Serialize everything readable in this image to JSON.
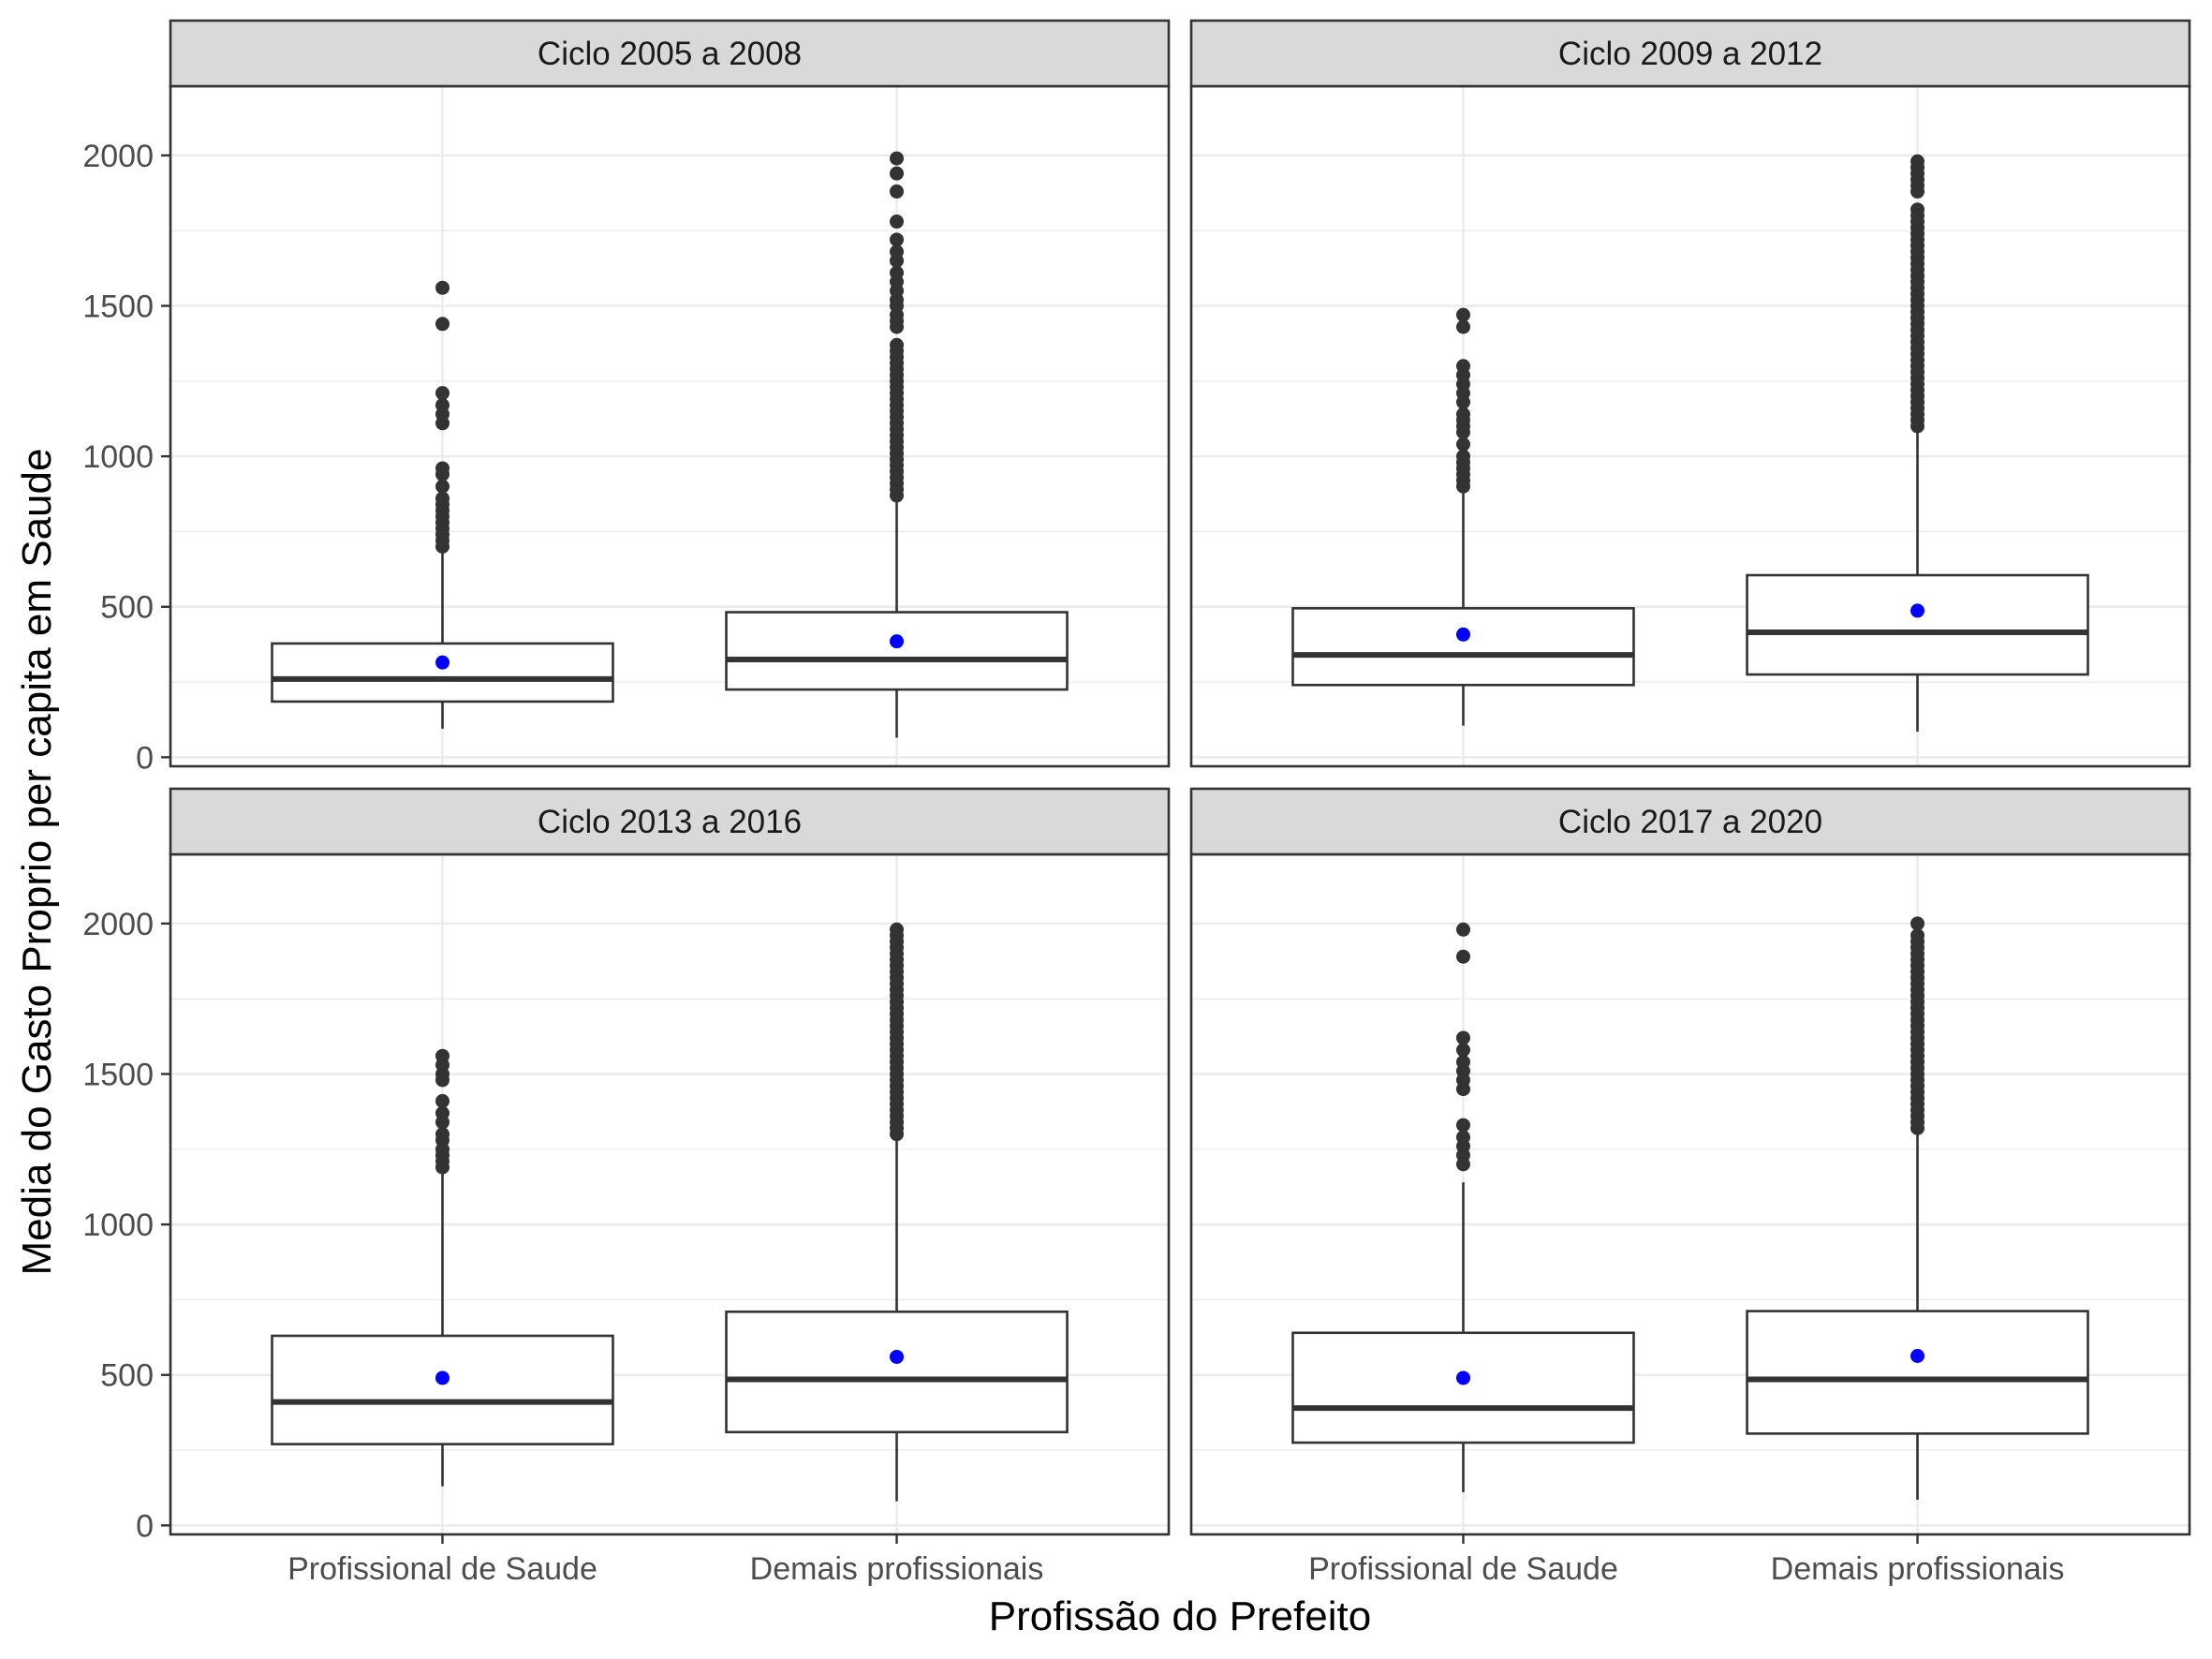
{
  "chart_data": {
    "type": "boxplot",
    "xlabel": "Profissão do Prefeito",
    "ylabel": "Media do Gasto Proprio per capita em Saude",
    "ylim": [
      -30,
      2230
    ],
    "yticks": [
      0,
      500,
      1000,
      1500,
      2000
    ],
    "categories": [
      "Profissional de Saude",
      "Demais profissionais"
    ],
    "colors": {
      "mean_point": "#0000ff",
      "outlier": "#333333",
      "box": "#333333",
      "strip_fill": "#d9d9d9",
      "grid": "#ebebeb"
    },
    "grid": true,
    "panels": [
      {
        "title": "Ciclo 2005 a 2008",
        "boxes": [
          {
            "category": "Profissional de Saude",
            "whisker_low": 95,
            "q1": 185,
            "median": 260,
            "q3": 378,
            "whisker_high": 680,
            "mean": 315,
            "outliers": [
              700,
              720,
              740,
              760,
              780,
              800,
              820,
              840,
              860,
              900,
              940,
              960,
              1110,
              1140,
              1170,
              1210,
              1440,
              1560
            ]
          },
          {
            "category": "Demais profissionais",
            "whisker_low": 65,
            "q1": 225,
            "median": 325,
            "q3": 482,
            "whisker_high": 860,
            "mean": 385,
            "outliers": [
              870,
              890,
              910,
              930,
              950,
              970,
              990,
              1010,
              1030,
              1050,
              1070,
              1090,
              1110,
              1130,
              1150,
              1170,
              1190,
              1210,
              1230,
              1250,
              1270,
              1290,
              1310,
              1330,
              1350,
              1370,
              1430,
              1450,
              1470,
              1500,
              1520,
              1550,
              1580,
              1610,
              1650,
              1680,
              1720,
              1780,
              1880,
              1940,
              1990
            ]
          }
        ]
      },
      {
        "title": "Ciclo 2009 a 2012",
        "boxes": [
          {
            "category": "Profissional de Saude",
            "whisker_low": 105,
            "q1": 240,
            "median": 340,
            "q3": 495,
            "whisker_high": 880,
            "mean": 408,
            "outliers": [
              900,
              920,
              940,
              960,
              980,
              1000,
              1040,
              1080,
              1100,
              1120,
              1140,
              1180,
              1210,
              1240,
              1270,
              1300,
              1430,
              1470
            ]
          },
          {
            "category": "Demais profissionais",
            "whisker_low": 85,
            "q1": 275,
            "median": 415,
            "q3": 605,
            "whisker_high": 1090,
            "mean": 487,
            "outliers": [
              1100,
              1120,
              1140,
              1160,
              1180,
              1200,
              1220,
              1240,
              1260,
              1280,
              1300,
              1320,
              1340,
              1360,
              1380,
              1400,
              1420,
              1440,
              1460,
              1480,
              1500,
              1520,
              1540,
              1560,
              1580,
              1600,
              1620,
              1640,
              1660,
              1680,
              1700,
              1720,
              1740,
              1760,
              1780,
              1800,
              1820,
              1880,
              1900,
              1920,
              1940,
              1960,
              1980
            ]
          }
        ]
      },
      {
        "title": "Ciclo 2013 a 2016",
        "boxes": [
          {
            "category": "Profissional de Saude",
            "whisker_low": 130,
            "q1": 270,
            "median": 410,
            "q3": 630,
            "whisker_high": 1180,
            "mean": 490,
            "outliers": [
              1190,
              1210,
              1230,
              1250,
              1280,
              1300,
              1340,
              1370,
              1410,
              1480,
              1500,
              1530,
              1560
            ]
          },
          {
            "category": "Demais profissionais",
            "whisker_low": 80,
            "q1": 310,
            "median": 485,
            "q3": 710,
            "whisker_high": 1290,
            "mean": 560,
            "outliers": [
              1300,
              1320,
              1340,
              1360,
              1380,
              1400,
              1420,
              1440,
              1460,
              1480,
              1500,
              1520,
              1540,
              1560,
              1580,
              1600,
              1620,
              1640,
              1660,
              1680,
              1700,
              1720,
              1740,
              1760,
              1780,
              1800,
              1820,
              1840,
              1860,
              1880,
              1900,
              1920,
              1940,
              1960,
              1980
            ]
          }
        ]
      },
      {
        "title": "Ciclo 2017 a 2020",
        "boxes": [
          {
            "category": "Profissional de Saude",
            "whisker_low": 110,
            "q1": 275,
            "median": 390,
            "q3": 640,
            "whisker_high": 1140,
            "mean": 490,
            "outliers": [
              1200,
              1230,
              1260,
              1290,
              1330,
              1450,
              1480,
              1510,
              1540,
              1580,
              1620,
              1890,
              1980
            ]
          },
          {
            "category": "Demais profissionais",
            "whisker_low": 85,
            "q1": 305,
            "median": 485,
            "q3": 712,
            "whisker_high": 1310,
            "mean": 563,
            "outliers": [
              1320,
              1340,
              1360,
              1380,
              1400,
              1420,
              1440,
              1460,
              1480,
              1500,
              1520,
              1540,
              1560,
              1580,
              1600,
              1620,
              1640,
              1660,
              1680,
              1700,
              1720,
              1740,
              1760,
              1780,
              1800,
              1820,
              1840,
              1860,
              1880,
              1900,
              1920,
              1940,
              1960,
              2000
            ]
          }
        ]
      }
    ]
  }
}
